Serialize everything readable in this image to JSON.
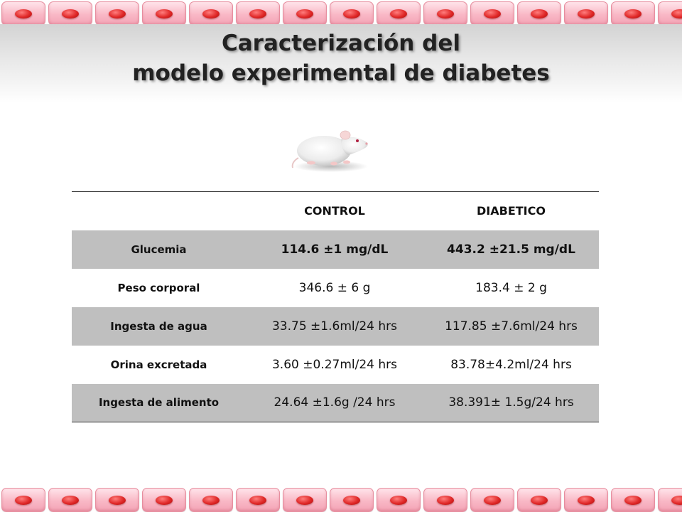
{
  "slide": {
    "title_line1": "Caracterización del",
    "title_line2": "modelo experimental de diabetes"
  },
  "decoration": {
    "border_icon": "red-blood-cell-icon",
    "image_icon": "white-rat-icon",
    "colors": {
      "cell_fill": "#f9b8c6",
      "nucleus": "#e02828",
      "title_band": "#d3d3d3",
      "shaded_row": "#bfbfbf"
    }
  },
  "table": {
    "headers": [
      "",
      "CONTROL",
      "DIABETICO"
    ],
    "rows": [
      {
        "label": "Glucemia",
        "control": "114.6 ±1 mg/dL",
        "diabetico": "443.2 ±21.5 mg/dL"
      },
      {
        "label": "Peso corporal",
        "control": "346.6 ± 6 g",
        "diabetico": "183.4 ± 2 g"
      },
      {
        "label": "Ingesta de agua",
        "control": "33.75 ±1.6ml/24 hrs",
        "diabetico": "117.85 ±7.6ml/24 hrs"
      },
      {
        "label": "Orina excretada",
        "control": "3.60 ±0.27ml/24 hrs",
        "diabetico": "83.78±4.2ml/24 hrs"
      },
      {
        "label": "Ingesta de alimento",
        "control": "24.64 ±1.6g /24 hrs",
        "diabetico": "38.391± 1.5g/24 hrs"
      }
    ]
  }
}
